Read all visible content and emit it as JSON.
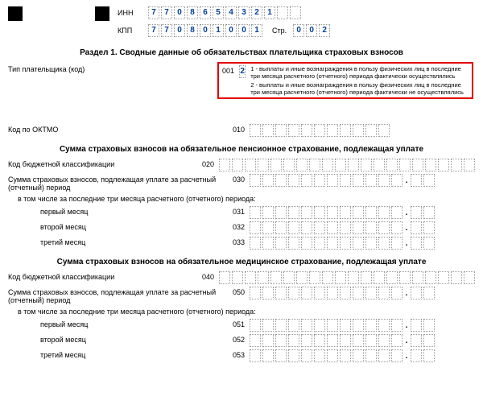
{
  "header": {
    "inn_label": "ИНН",
    "inn": [
      "7",
      "7",
      "0",
      "8",
      "6",
      "5",
      "4",
      "3",
      "2",
      "1",
      "",
      ""
    ],
    "kpp_label": "КПП",
    "kpp": [
      "7",
      "7",
      "0",
      "8",
      "0",
      "1",
      "0",
      "0",
      "1"
    ],
    "page_label": "Стр.",
    "page": [
      "0",
      "0",
      "2"
    ]
  },
  "section1_title": "Раздел 1. Сводные данные об обязательствах плательщика страховых взносов",
  "payer_type": {
    "label": "Тип плательщика (код)",
    "code": "001",
    "value": "2",
    "note1": "1 - выплаты и иные вознаграждения в пользу физических лиц в последние три месяца расчетного (отчетного) периода фактически осуществлялись",
    "note2": "2 - выплаты и иные вознаграждения в пользу физических лиц в последние три месяца расчетного (отчетного) периода фактически не осуществлялись"
  },
  "oktmo": {
    "label": "Код по ОКТМО",
    "code": "010"
  },
  "block_pension": {
    "title": "Сумма страховых взносов на обязательное пенсионное страхование, подлежащая уплате",
    "kbk": {
      "label": "Код бюджетной классификации",
      "code": "020"
    },
    "sum": {
      "label": "Сумма страховых взносов, подлежащая уплате за расчетный (отчетный) период",
      "code": "030"
    },
    "sub_note": "в том числе за последние три месяца расчетного (отчетного) периода:",
    "m1": {
      "label": "первый месяц",
      "code": "031"
    },
    "m2": {
      "label": "второй месяц",
      "code": "032"
    },
    "m3": {
      "label": "третий месяц",
      "code": "033"
    }
  },
  "block_med": {
    "title": "Сумма страховых взносов на обязательное медицинское страхование, подлежащая уплате",
    "kbk": {
      "label": "Код бюджетной классификации",
      "code": "040"
    },
    "sum": {
      "label": "Сумма страховых взносов, подлежащая уплате за расчетный (отчетный) период",
      "code": "050"
    },
    "sub_note": "в том числе за последние три месяца расчетного (отчетного) периода:",
    "m1": {
      "label": "первый месяц",
      "code": "051"
    },
    "m2": {
      "label": "второй месяц",
      "code": "052"
    },
    "m3": {
      "label": "третий месяц",
      "code": "053"
    }
  },
  "layout": {
    "cells20": 20,
    "cells11": 11,
    "int12": 12,
    "frac2": 2
  }
}
